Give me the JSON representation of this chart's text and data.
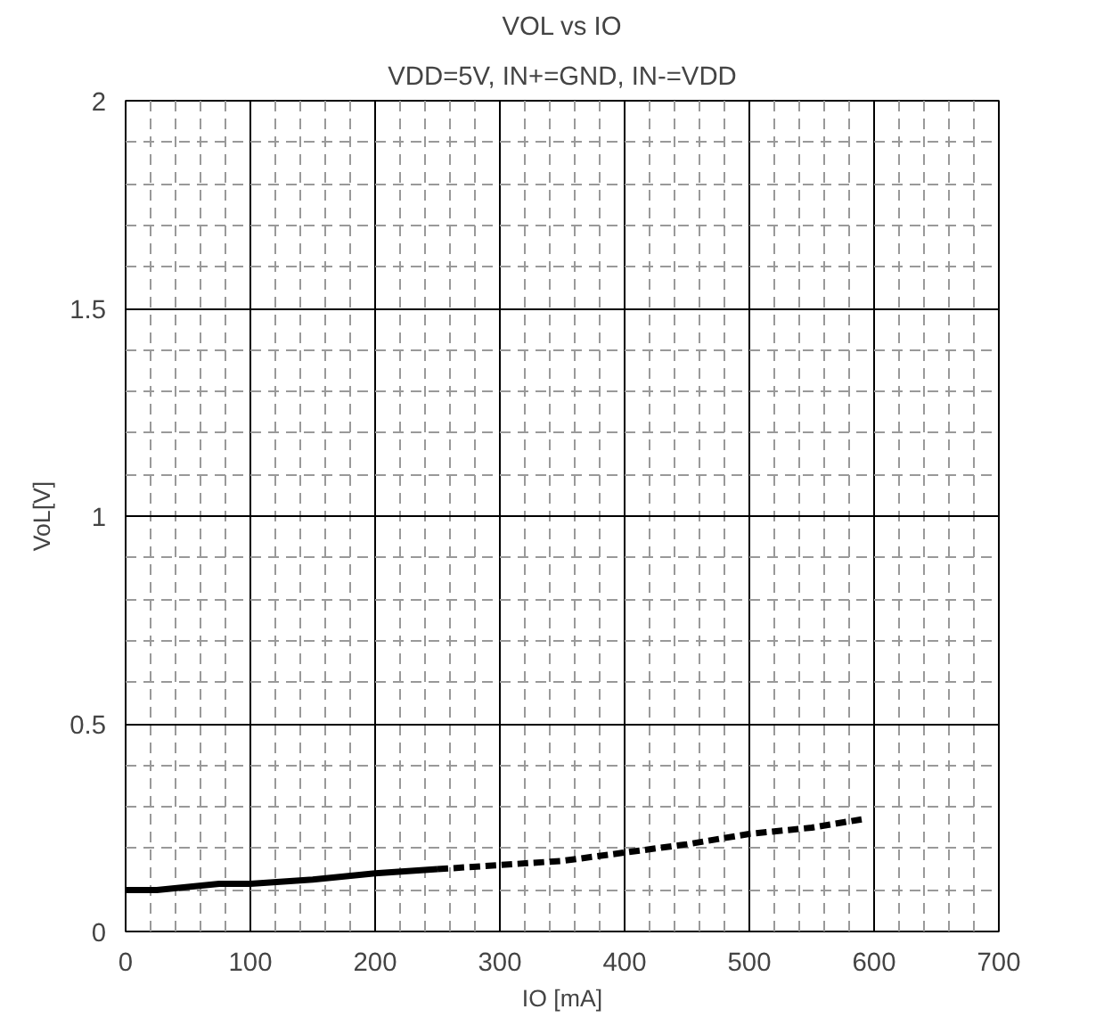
{
  "chart_data": {
    "type": "line",
    "title": "VOL vs IO",
    "subtitle": "VDD=5V, IN+=GND, IN-=VDD",
    "xlabel": "IO [mA]",
    "ylabel": "VoL[V]",
    "xlim": [
      0,
      700
    ],
    "xticks": [
      0,
      100,
      200,
      300,
      400,
      500,
      600,
      700
    ],
    "ylim": [
      0,
      2
    ],
    "yticks": [
      0,
      0.5,
      1,
      1.5,
      2
    ],
    "grid": true,
    "series": [
      {
        "color": "#000000",
        "line_style": "solid",
        "x": [
          0,
          25,
          75,
          100,
          150,
          200,
          250
        ],
        "values": [
          0.1,
          0.1,
          0.115,
          0.115,
          0.125,
          0.14,
          0.15
        ]
      },
      {
        "color": "#000000",
        "line_style": "dashed",
        "x": [
          250,
          300,
          350,
          400,
          450,
          500,
          550,
          590
        ],
        "values": [
          0.15,
          0.16,
          0.17,
          0.19,
          0.21,
          0.235,
          0.25,
          0.27
        ]
      }
    ]
  }
}
